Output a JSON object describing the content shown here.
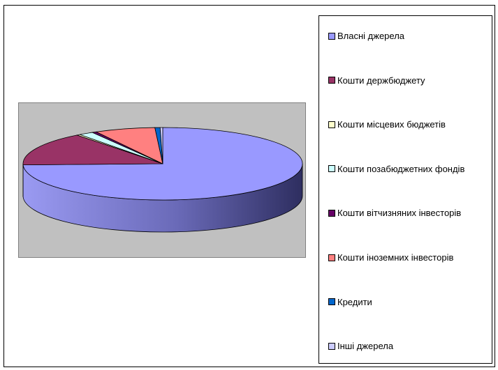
{
  "chart_data": {
    "type": "pie",
    "style": "3d",
    "legend_position": "right",
    "categories": [
      "Власні джерела",
      "Кошти держбюджету",
      "Кошти місцевих бюджетів",
      "Кошти позабюджетних фондів",
      "Кошти вітчизняних інвесторів",
      "Кошти іноземних інвесторів",
      "Кредити",
      "Інші джерела"
    ],
    "values": [
      74.5,
      15.0,
      0.4,
      1.7,
      0.5,
      7.0,
      0.6,
      0.3
    ],
    "colors": [
      "#9999ff",
      "#993366",
      "#ffffcc",
      "#ccffff",
      "#660066",
      "#ff8080",
      "#0066cc",
      "#ccccff"
    ]
  }
}
